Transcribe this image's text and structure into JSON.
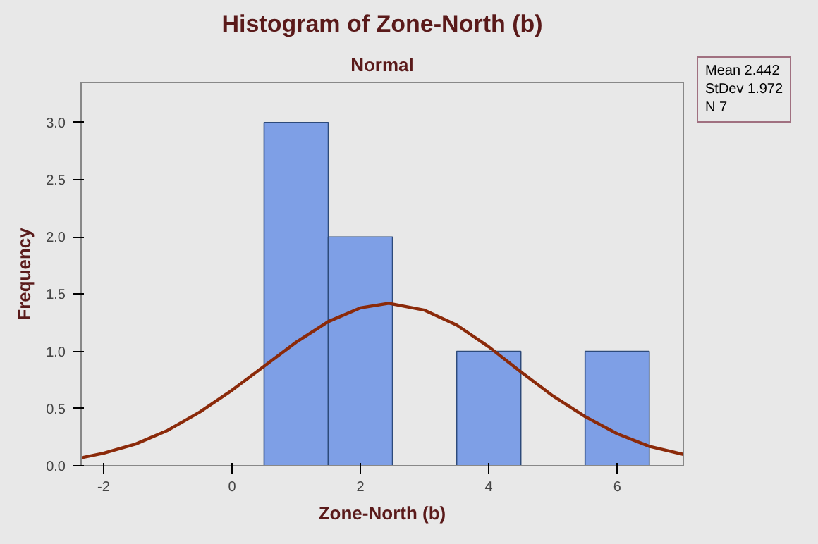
{
  "chart_data": {
    "type": "histogram",
    "title": "Histogram of Zone-North (b)",
    "subtitle": "Normal",
    "xlabel": "Zone-North (b)",
    "ylabel": "Frequency",
    "bins": [
      0.5,
      1.5,
      2.5,
      3.5,
      4.5,
      5.5,
      6.5
    ],
    "series": [
      {
        "color": "#7e9fe6",
        "values": [
          3,
          2,
          0,
          1,
          0,
          1
        ]
      },
      {
        "type": "line",
        "color": "#8b2a0a",
        "x": [
          -2.35,
          -2,
          -1.5,
          -1,
          -0.5,
          0,
          0.5,
          1,
          1.5,
          2,
          2.442,
          3,
          3.5,
          4,
          4.5,
          5,
          5.5,
          6,
          6.5,
          7.03
        ],
        "values": [
          0.07,
          0.11,
          0.19,
          0.31,
          0.47,
          0.66,
          0.87,
          1.08,
          1.26,
          1.38,
          1.42,
          1.36,
          1.23,
          1.04,
          0.82,
          0.61,
          0.43,
          0.28,
          0.17,
          0.1
        ]
      }
    ],
    "xlim": [
      -2.35,
      7.03
    ],
    "xticks": [
      -2,
      0,
      2,
      4,
      6
    ],
    "ylim": [
      0,
      3.35
    ],
    "yticks": [
      {
        "value": 0,
        "label": "0.0"
      },
      {
        "value": 0.5,
        "label": "0.5"
      },
      {
        "value": 1,
        "label": "1.0"
      },
      {
        "value": 1.5,
        "label": "1.5"
      },
      {
        "value": 2,
        "label": "2.0"
      },
      {
        "value": 2.5,
        "label": "2.5"
      },
      {
        "value": 3,
        "label": "3.0"
      }
    ],
    "grid": false,
    "annotations": [
      "Mean 2.442",
      "StDev 1.972",
      "N 7"
    ]
  }
}
